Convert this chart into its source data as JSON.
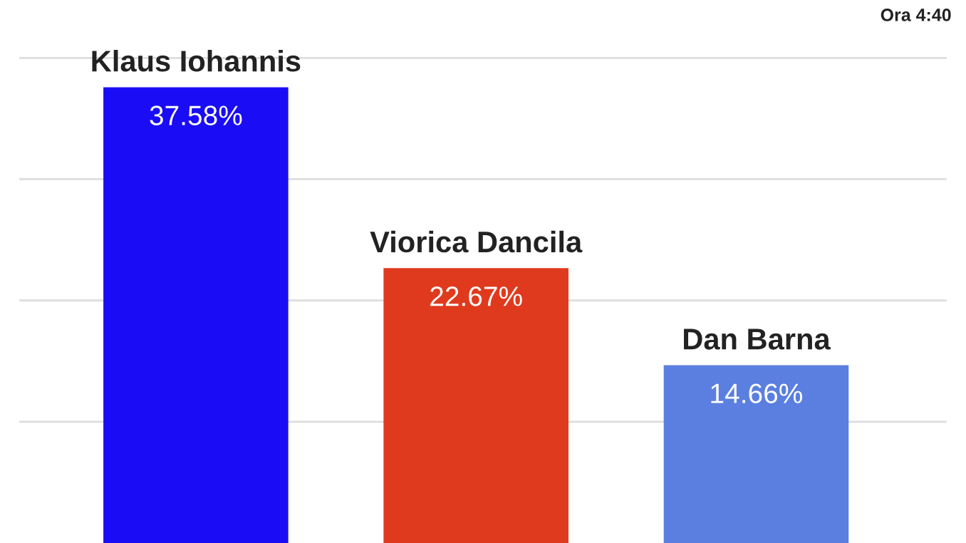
{
  "chart_data": {
    "type": "bar",
    "categories": [
      "Klaus Iohannis",
      "Viorica Dancila",
      "Dan Barna"
    ],
    "values": [
      37.58,
      22.67,
      14.66
    ],
    "colors": [
      "#1a0df5",
      "#e03a1e",
      "#5b7fe0"
    ],
    "value_labels": [
      "37.58%",
      "22.67%",
      "14.66%"
    ],
    "annotations": [
      "Ora 4:40"
    ],
    "yticks": [
      {
        "value": 10,
        "label": null
      },
      {
        "value": 20,
        "label": null
      },
      {
        "value": 30,
        "label": null
      },
      {
        "value": 40,
        "label": null
      }
    ],
    "grid": "y"
  }
}
